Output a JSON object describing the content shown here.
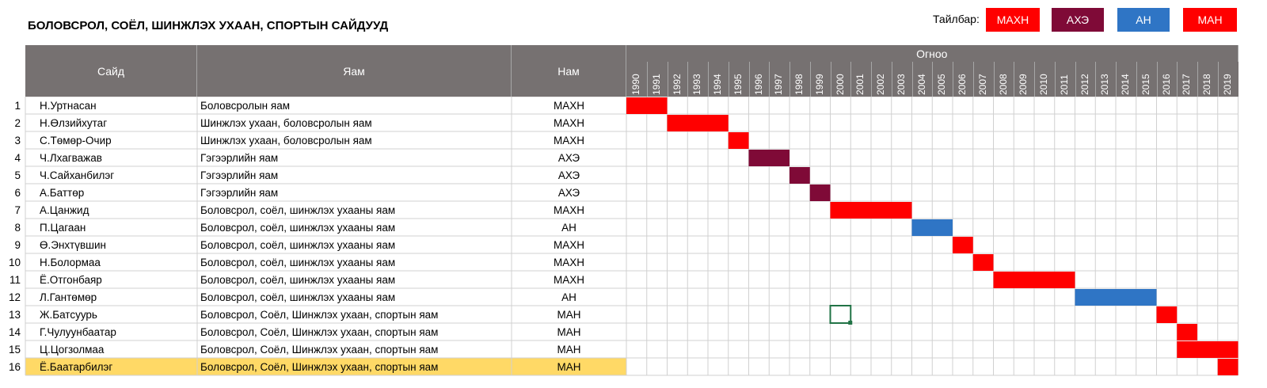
{
  "title": "БОЛОВСРОЛ, СОЁЛ, ШИНЖЛЭХ УХААН, СПОРТЫН САЙДУУД",
  "legend": {
    "label": "Тайлбар:",
    "items": [
      {
        "name": "МАХН",
        "color": "#ff0000"
      },
      {
        "name": "АХЭ",
        "color": "#7f0a37"
      },
      {
        "name": "АН",
        "color": "#2f75c5"
      },
      {
        "name": "МАН",
        "color": "#ff0000"
      }
    ]
  },
  "table": {
    "col_headers": {
      "minister": "Сайд",
      "ministry": "Яам",
      "party": "Нам",
      "period": "Огноо"
    }
  },
  "chart_data": {
    "type": "gantt",
    "years": [
      1990,
      1991,
      1992,
      1993,
      1994,
      1995,
      1996,
      1997,
      1998,
      1999,
      2000,
      2001,
      2002,
      2003,
      2004,
      2005,
      2006,
      2007,
      2008,
      2009,
      2010,
      2011,
      2012,
      2013,
      2014,
      2015,
      2016,
      2017,
      2018,
      2019
    ],
    "rows": [
      {
        "num": "1",
        "minister": "Н.Уртнасан",
        "ministry": "Боловсролын яам",
        "party": "МАХН",
        "start": 1990,
        "end": 1992
      },
      {
        "num": "2",
        "minister": "Н.Өлзийхутаг",
        "ministry": "Шинжлэх ухаан, боловсролын яам",
        "party": "МАХН",
        "start": 1992,
        "end": 1995
      },
      {
        "num": "3",
        "minister": "С.Төмөр-Очир",
        "ministry": "Шинжлэх ухаан, боловсролын яам",
        "party": "МАХН",
        "start": 1995,
        "end": 1996
      },
      {
        "num": "4",
        "minister": "Ч.Лхагважав",
        "ministry": "Гэгээрлийн яам",
        "party": "АХЭ",
        "start": 1996,
        "end": 1998
      },
      {
        "num": "5",
        "minister": "Ч.Сайханбилэг",
        "ministry": "Гэгээрлийн яам",
        "party": "АХЭ",
        "start": 1998,
        "end": 1999
      },
      {
        "num": "6",
        "minister": "А.Баттөр",
        "ministry": "Гэгээрлийн яам",
        "party": "АХЭ",
        "start": 1999,
        "end": 2000
      },
      {
        "num": "7",
        "minister": "А.Цанжид",
        "ministry": "Боловсрол, соёл, шинжлэх ухааны яам",
        "party": "МАХН",
        "start": 2000,
        "end": 2004
      },
      {
        "num": "8",
        "minister": "П.Цагаан",
        "ministry": "Боловсрол, соёл, шинжлэх ухааны яам",
        "party": "АН",
        "start": 2004,
        "end": 2006
      },
      {
        "num": "9",
        "minister": "Ө.Энхтүвшин",
        "ministry": "Боловсрол, соёл, шинжлэх ухааны яам",
        "party": "МАХН",
        "start": 2006,
        "end": 2007
      },
      {
        "num": "10",
        "minister": "Н.Болормаа",
        "ministry": "Боловсрол, соёл, шинжлэх ухааны яам",
        "party": "МАХН",
        "start": 2007,
        "end": 2008
      },
      {
        "num": "11",
        "minister": "Ё.Отгонбаяр",
        "ministry": "Боловсрол, соёл, шинжлэх ухааны яам",
        "party": "МАХН",
        "start": 2008,
        "end": 2012
      },
      {
        "num": "12",
        "minister": "Л.Гантөмөр",
        "ministry": "Боловсрол, соёл, шинжлэх ухааны яам",
        "party": "АН",
        "start": 2012,
        "end": 2016
      },
      {
        "num": "13",
        "minister": "Ж.Батсуурь",
        "ministry": "Боловсрол, Соёл, Шинжлэх ухаан, спортын яам",
        "party": "МАН",
        "start": 2016,
        "end": 2017
      },
      {
        "num": "14",
        "minister": "Г.Чулуунбаатар",
        "ministry": "Боловсрол, Соёл, Шинжлэх ухаан, спортын яам",
        "party": "МАН",
        "start": 2017,
        "end": 2018
      },
      {
        "num": "15",
        "minister": "Ц.Цогзолмаа",
        "ministry": "Боловсрол, Соёл, Шинжлэх ухаан, спортын яам",
        "party": "МАН",
        "start": 2017,
        "end": 2020
      },
      {
        "num": "16",
        "minister": "Ё.Баатарбилэг",
        "ministry": "Боловсрол, Соёл, Шинжлэх ухаан, спортын яам",
        "party": "МАН",
        "start": 2019,
        "end": 2020,
        "highlighted": true
      }
    ],
    "party_colors": {
      "МАХН": "#ff0000",
      "АХЭ": "#7f0a37",
      "АН": "#2f75c5",
      "МАН": "#ff0000"
    },
    "highlight_color": "#ffd966",
    "selected_cell": {
      "year": 2000,
      "row": "13"
    }
  }
}
